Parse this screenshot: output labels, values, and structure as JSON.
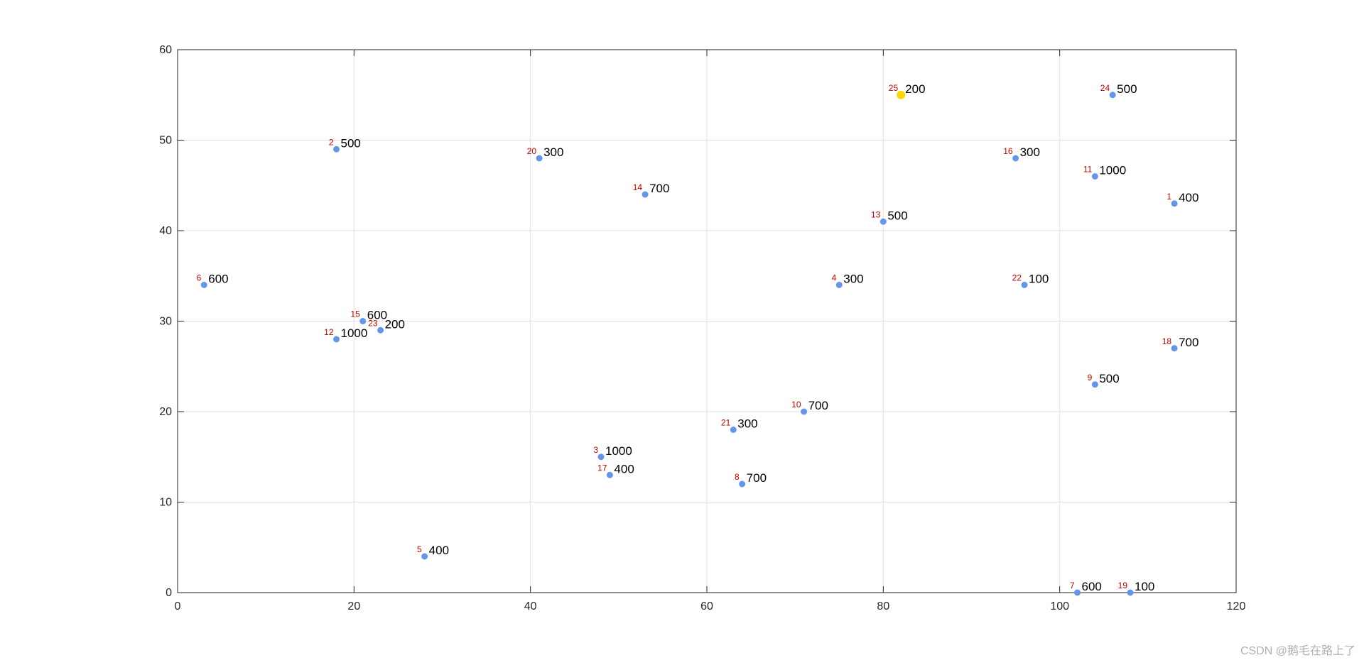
{
  "chart_data": {
    "type": "scatter",
    "title": "",
    "xlabel": "",
    "ylabel": "",
    "xlim": [
      0,
      120
    ],
    "ylim": [
      0,
      60
    ],
    "xticks": [
      0,
      20,
      40,
      60,
      80,
      100,
      120
    ],
    "yticks": [
      0,
      10,
      20,
      30,
      40,
      50,
      60
    ],
    "grid": true,
    "colors": {
      "point": "#6495ed",
      "highlight": "#ffd700",
      "id_label": "#c00000",
      "value_label": "#000000"
    },
    "points": [
      {
        "id": "1",
        "x": 113,
        "y": 43,
        "value": "400"
      },
      {
        "id": "2",
        "x": 18,
        "y": 49,
        "value": "500"
      },
      {
        "id": "3",
        "x": 48,
        "y": 15,
        "value": "1000"
      },
      {
        "id": "4",
        "x": 75,
        "y": 34,
        "value": "300"
      },
      {
        "id": "5",
        "x": 28,
        "y": 4,
        "value": "400"
      },
      {
        "id": "6",
        "x": 3,
        "y": 34,
        "value": "600"
      },
      {
        "id": "7",
        "x": 102,
        "y": 0,
        "value": "600"
      },
      {
        "id": "8",
        "x": 64,
        "y": 12,
        "value": "700"
      },
      {
        "id": "9",
        "x": 104,
        "y": 23,
        "value": "500"
      },
      {
        "id": "10",
        "x": 71,
        "y": 20,
        "value": "700"
      },
      {
        "id": "11",
        "x": 104,
        "y": 46,
        "value": "1000"
      },
      {
        "id": "12",
        "x": 18,
        "y": 28,
        "value": "1000"
      },
      {
        "id": "13",
        "x": 80,
        "y": 41,
        "value": "500"
      },
      {
        "id": "14",
        "x": 53,
        "y": 44,
        "value": "700"
      },
      {
        "id": "15",
        "x": 21,
        "y": 30,
        "value": "600"
      },
      {
        "id": "16",
        "x": 95,
        "y": 48,
        "value": "300"
      },
      {
        "id": "17",
        "x": 49,
        "y": 13,
        "value": "400"
      },
      {
        "id": "18",
        "x": 113,
        "y": 27,
        "value": "700"
      },
      {
        "id": "19",
        "x": 108,
        "y": 0,
        "value": "100"
      },
      {
        "id": "20",
        "x": 41,
        "y": 48,
        "value": "300"
      },
      {
        "id": "21",
        "x": 63,
        "y": 18,
        "value": "300"
      },
      {
        "id": "22",
        "x": 96,
        "y": 34,
        "value": "100"
      },
      {
        "id": "23",
        "x": 23,
        "y": 29,
        "value": "200"
      },
      {
        "id": "24",
        "x": 106,
        "y": 55,
        "value": "500"
      },
      {
        "id": "25",
        "x": 82,
        "y": 55,
        "value": "200",
        "highlight": true
      }
    ]
  },
  "watermark": "CSDN @鹅毛在路上了"
}
